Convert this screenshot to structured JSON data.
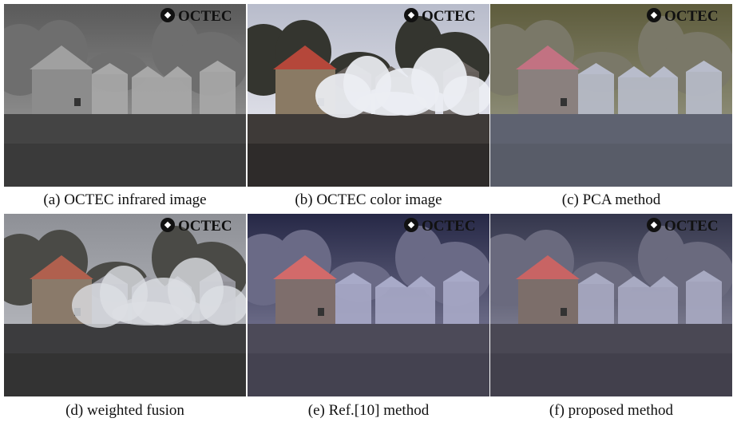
{
  "panels": [
    {
      "caption": "(a) OCTEC infrared image",
      "logo": "OCTEC"
    },
    {
      "caption": "(b) OCTEC color image",
      "logo": "OCTEC"
    },
    {
      "caption": "(c) PCA method",
      "logo": "OCTEC"
    },
    {
      "caption": "(d) weighted fusion",
      "logo": "OCTEC"
    },
    {
      "caption": "(e) Ref.[10] method",
      "logo": "OCTEC"
    },
    {
      "caption": "(f) proposed method",
      "logo": "OCTEC"
    }
  ]
}
